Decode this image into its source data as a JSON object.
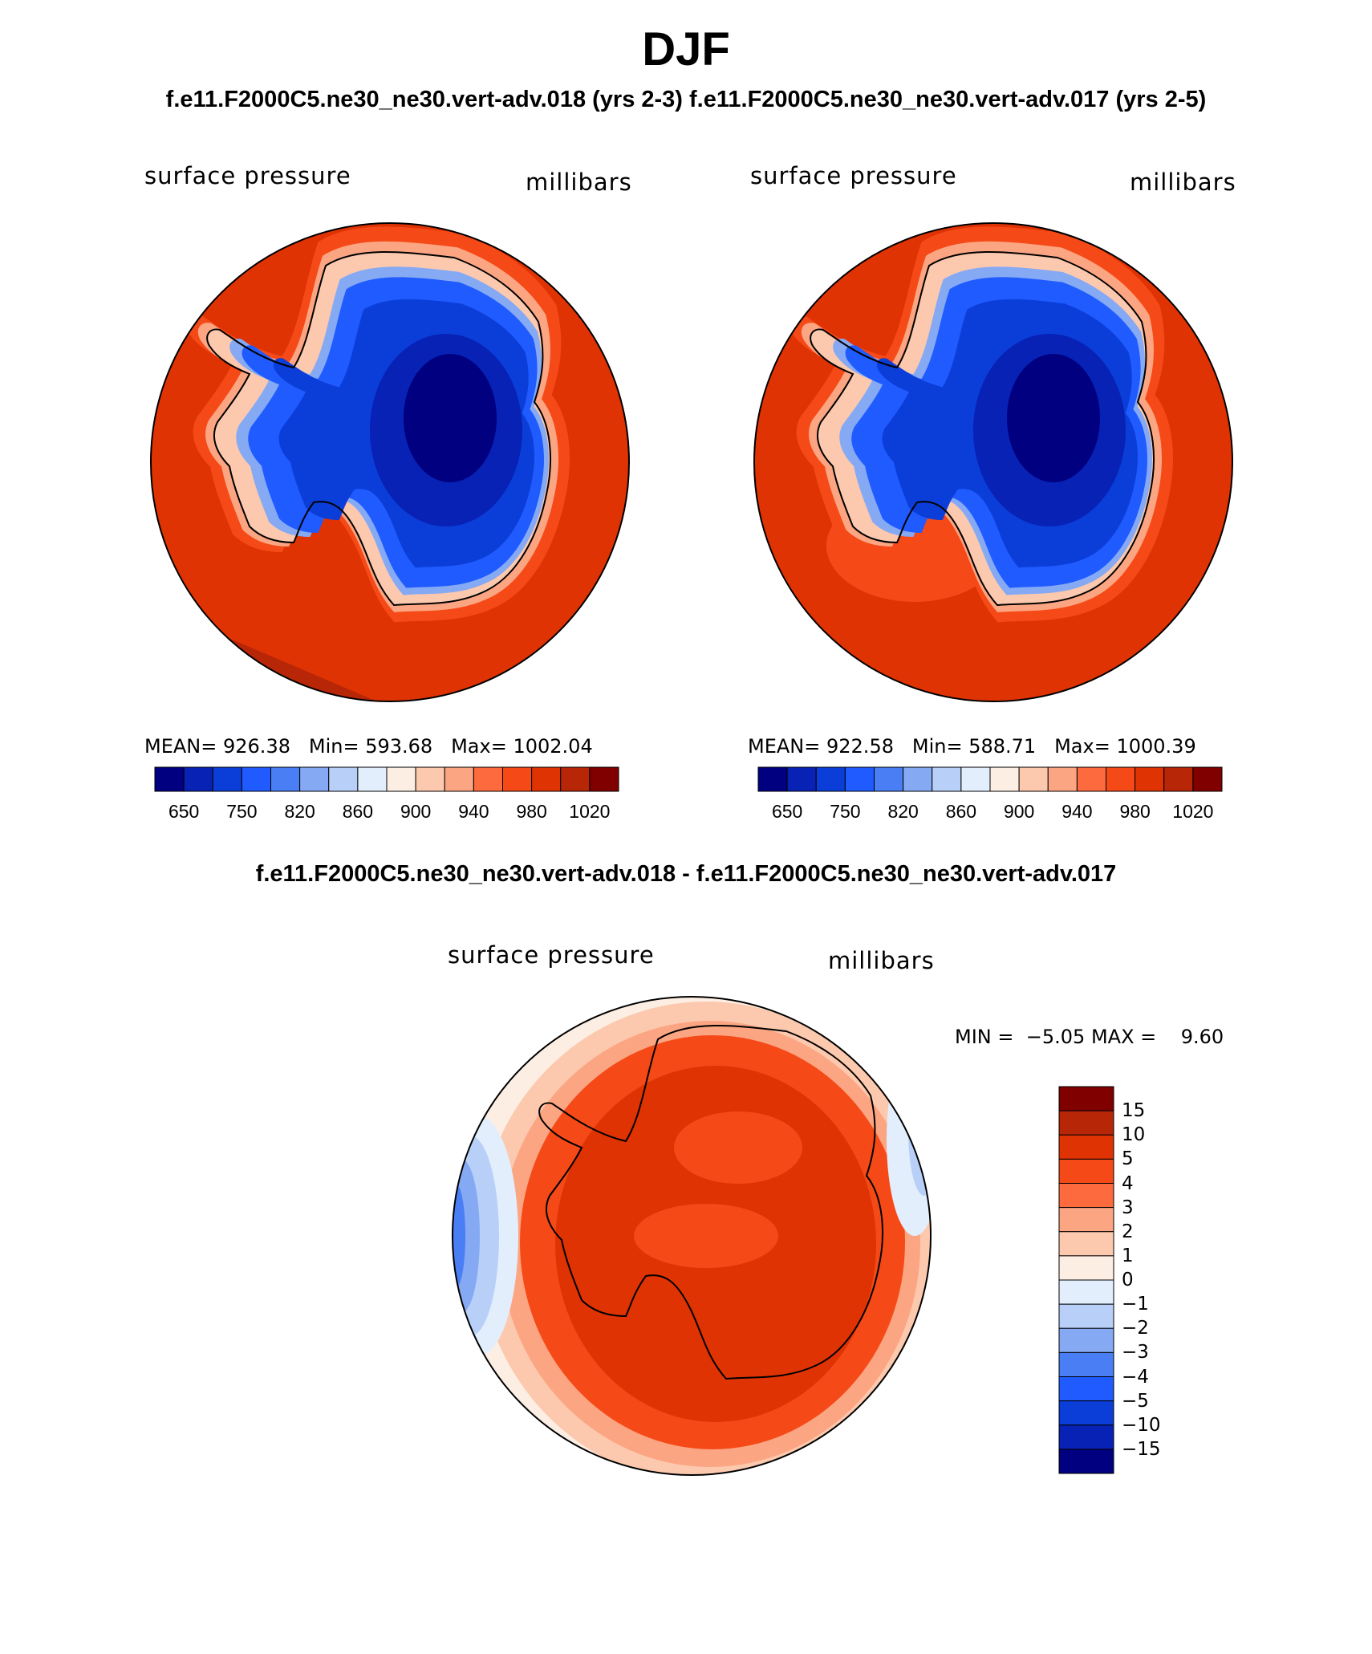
{
  "title": "DJF",
  "subtitle": "f.e11.F2000C5.ne30_ne30.vert-adv.018 (yrs 2-3) f.e11.F2000C5.ne30_ne30.vert-adv.017 (yrs 2-5)",
  "diff_title": "f.e11.F2000C5.ne30_ne30.vert-adv.018 - f.e11.F2000C5.ne30_ne30.vert-adv.017",
  "panels": [
    {
      "variable": "surface pressure",
      "units": "millibars",
      "mean_label": "MEAN=",
      "mean": "926.38",
      "min_label": "Min=",
      "min": "593.68",
      "max_label": "Max=",
      "max": "1002.04"
    },
    {
      "variable": "surface pressure",
      "units": "millibars",
      "mean_label": "MEAN=",
      "mean": "922.58",
      "min_label": "Min=",
      "min": "588.71",
      "max_label": "Max=",
      "max": "1000.39"
    }
  ],
  "diff_panel": {
    "variable": "surface pressure",
    "units": "millibars",
    "min_label": "MIN =",
    "min": "−5.05",
    "max_label": "MAX =",
    "max": "9.60"
  },
  "colorbar_abs": {
    "labels": [
      "650",
      "750",
      "820",
      "860",
      "900",
      "940",
      "980",
      "1020"
    ],
    "colors": [
      "#000080",
      "#0722b4",
      "#0b3ed9",
      "#1f5bff",
      "#4a7ef5",
      "#86a9f4",
      "#b8d0f8",
      "#e3eefc",
      "#fdeee3",
      "#fcc9ae",
      "#fca583",
      "#fc6a3e",
      "#f54a18",
      "#e03304",
      "#b82608",
      "#800000"
    ]
  },
  "colorbar_diff": {
    "labels": [
      "15",
      "10",
      "5",
      "4",
      "3",
      "2",
      "1",
      "0",
      "−1",
      "−2",
      "−3",
      "−4",
      "−5",
      "−10",
      "−15"
    ],
    "colors": [
      "#800000",
      "#b82608",
      "#e03304",
      "#f54a18",
      "#fc6a3e",
      "#fca583",
      "#fcc9ae",
      "#fdeee3",
      "#e3eefc",
      "#b8d0f8",
      "#86a9f4",
      "#4a7ef5",
      "#1f5bff",
      "#0b3ed9",
      "#0722b4",
      "#000080"
    ]
  },
  "field_colors": {
    "ocean": "#e03304",
    "ocean_dark": "#b82608",
    "coast_rim": "#f54a18",
    "coast_light": "#fca583",
    "coast_pale": "#fcc9ae",
    "interior_1": "#86a9f4",
    "interior_2": "#1f5bff",
    "interior_3": "#0b3ed9",
    "interior_4": "#0722b4",
    "interior_5": "#000080",
    "diff_edge_1": "#fdeee3",
    "diff_edge_2": "#e3eefc",
    "diff_edge_3": "#b8d0f8",
    "diff_edge_4": "#86a9f4",
    "diff_edge_5": "#4a7ef5"
  }
}
